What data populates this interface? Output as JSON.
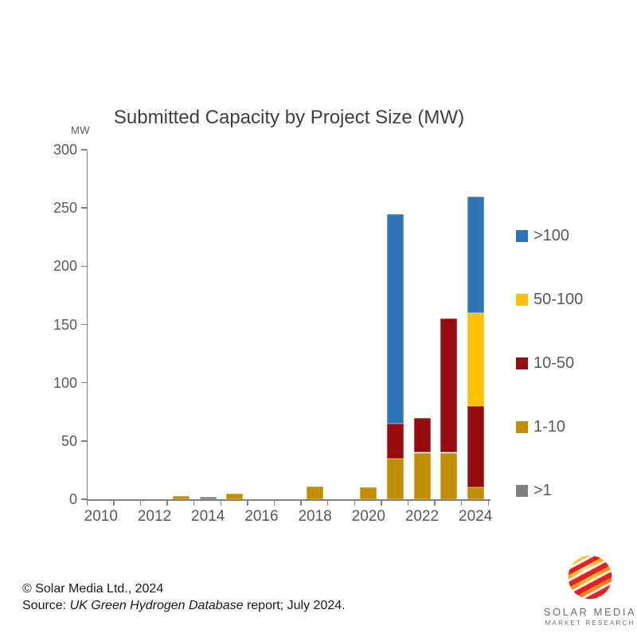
{
  "chart_data": {
    "type": "bar",
    "stacked": true,
    "stack_order": "bottom_to_top",
    "title": "Submitted Capacity by Project Size (MW)",
    "ylabel": "MW",
    "xlabel": "",
    "ylim": [
      0,
      300
    ],
    "y_tick_step": 50,
    "y_tick_labels": [
      "0",
      "50",
      "100",
      "150",
      "200",
      "250",
      "300"
    ],
    "grid": false,
    "legend_position": "right",
    "categories": [
      "2010",
      "2011",
      "2012",
      "2013",
      "2014",
      "2015",
      "2016",
      "2017",
      "2018",
      "2019",
      "2020",
      "2021",
      "2022",
      "2023",
      "2024"
    ],
    "x_labeled_years": [
      "2010",
      "2012",
      "2014",
      "2016",
      "2018",
      "2020",
      "2022",
      "2024"
    ],
    "series": [
      {
        "name": ">1",
        "color": "#7F7F7F",
        "values": [
          0,
          0,
          0,
          0,
          2,
          0,
          0,
          0,
          0,
          0,
          0,
          0,
          0,
          0,
          0
        ]
      },
      {
        "name": "1-10",
        "color": "#BF8F00",
        "values": [
          0,
          0,
          0,
          3,
          0,
          5,
          0,
          0,
          11,
          0,
          10,
          35,
          40,
          40,
          10
        ]
      },
      {
        "name": "10-50",
        "color": "#970C0E",
        "values": [
          0,
          0,
          0,
          0,
          0,
          0,
          0,
          0,
          0,
          0,
          0,
          30,
          30,
          115,
          70
        ]
      },
      {
        "name": "50-100",
        "color": "#FFC000",
        "values": [
          0,
          0,
          0,
          0,
          0,
          0,
          0,
          0,
          0,
          0,
          0,
          0,
          0,
          0,
          80
        ]
      },
      {
        "name": ">100",
        "color": "#2E75B6",
        "values": [
          0,
          0,
          0,
          0,
          0,
          0,
          0,
          0,
          0,
          0,
          0,
          180,
          0,
          0,
          100
        ]
      }
    ],
    "legend_order_top_to_bottom": [
      ">100",
      "50-100",
      "10-50",
      "1-10",
      ">1"
    ],
    "axis_color": "#808080",
    "label_color": "#595959",
    "title_color": "#3F3F3F",
    "totals_by_year": {
      "2013": 3,
      "2014": 2,
      "2015": 5,
      "2018": 11,
      "2020": 10,
      "2021": 245,
      "2022": 70,
      "2023": 155,
      "2024": 260
    }
  },
  "footer": {
    "copyright": "© Solar Media Ltd., 2024",
    "source_prefix": "Source: ",
    "source_italic": "UK Green Hydrogen Database",
    "source_suffix": " report; July 2024."
  },
  "logo": {
    "line1": "SOLAR MEDIA",
    "line2": "MARKET RESEARCH",
    "sphere_colors": {
      "inner": "#FFE8A0",
      "mid": "#FBAE17",
      "outer": "#F05A22",
      "stripe": "#E81E25"
    }
  }
}
